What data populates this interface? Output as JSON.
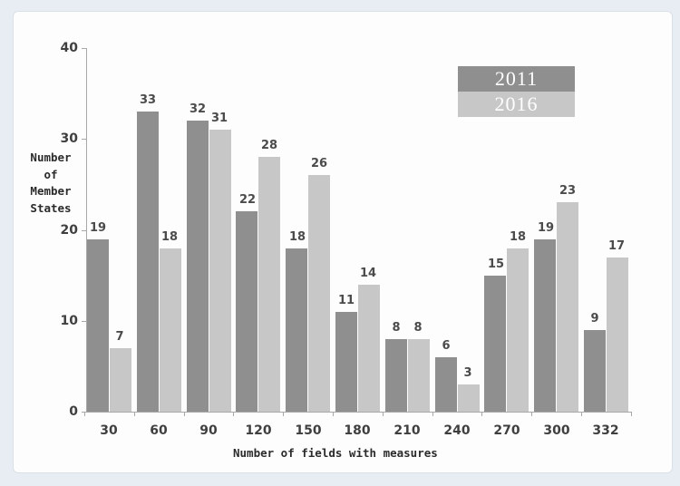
{
  "window": {
    "background": "#e8edf3",
    "card_background": "#fdfdfd",
    "card_border": "#d9e0e8"
  },
  "chart_data": {
    "type": "bar",
    "title": "",
    "categories": [
      "30",
      "60",
      "90",
      "120",
      "150",
      "180",
      "210",
      "240",
      "270",
      "300",
      "332"
    ],
    "series": [
      {
        "name": "2011",
        "color": "#8f8f8f",
        "values": [
          19,
          33,
          32,
          22,
          18,
          11,
          8,
          6,
          15,
          19,
          9
        ]
      },
      {
        "name": "2016",
        "color": "#c7c7c7",
        "values": [
          7,
          18,
          31,
          28,
          26,
          14,
          8,
          3,
          18,
          23,
          17
        ]
      }
    ],
    "xlabel": "Number of fields with measures",
    "ylabel": "Number of Member States",
    "ylabel_lines": [
      "Number",
      "of",
      "Member",
      "States"
    ],
    "yticks": [
      0,
      10,
      20,
      30,
      40
    ],
    "ylim": [
      0,
      40
    ],
    "grid": false,
    "legend_position": "top-right",
    "legend_text_color": "#ffffff",
    "colors": {
      "axis": "#a8a8a8",
      "value_label": "#4b4b4b",
      "tick_label": "#3f3f3f",
      "axis_title": "#2b2b2b"
    }
  }
}
